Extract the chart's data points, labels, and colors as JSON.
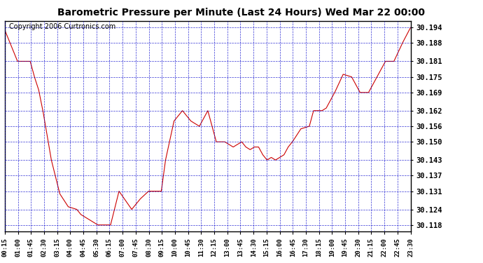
{
  "title": "Barometric Pressure per Minute (Last 24 Hours) Wed Mar 22 00:00",
  "copyright": "Copyright 2006 Curtronics.com",
  "yticks": [
    30.118,
    30.124,
    30.131,
    30.137,
    30.143,
    30.15,
    30.156,
    30.162,
    30.169,
    30.175,
    30.181,
    30.188,
    30.194
  ],
  "ylim": [
    30.1155,
    30.1965
  ],
  "xtick_labels": [
    "00:15",
    "01:00",
    "01:45",
    "02:30",
    "03:15",
    "04:00",
    "04:45",
    "05:30",
    "06:15",
    "07:00",
    "07:45",
    "08:30",
    "09:15",
    "10:00",
    "10:45",
    "11:30",
    "12:15",
    "13:00",
    "13:45",
    "14:30",
    "15:15",
    "16:00",
    "16:45",
    "17:30",
    "18:15",
    "19:00",
    "19:45",
    "20:30",
    "21:15",
    "22:00",
    "22:45",
    "23:30"
  ],
  "line_color": "#cc0000",
  "grid_color": "#0000cc",
  "background_color": "#ffffff",
  "title_fontsize": 10,
  "copyright_fontsize": 7,
  "cp_x": [
    0,
    45,
    90,
    105,
    120,
    135,
    165,
    195,
    225,
    255,
    270,
    285,
    300,
    315,
    330,
    345,
    360,
    375,
    405,
    450,
    480,
    510,
    525,
    555,
    570,
    600,
    630,
    660,
    690,
    720,
    750,
    780,
    810,
    840,
    855,
    870,
    885,
    900,
    915,
    930,
    945,
    960,
    975,
    990,
    1005,
    1020,
    1050,
    1080,
    1095,
    1110,
    1125,
    1140,
    1170,
    1200,
    1230,
    1260,
    1290,
    1320,
    1350,
    1380,
    1410,
    1439
  ],
  "cp_y": [
    30.193,
    30.181,
    30.181,
    30.175,
    30.17,
    30.162,
    30.143,
    30.13,
    30.125,
    30.124,
    30.122,
    30.121,
    30.12,
    30.119,
    30.118,
    30.118,
    30.118,
    30.118,
    30.131,
    30.124,
    30.128,
    30.131,
    30.131,
    30.131,
    30.143,
    30.158,
    30.162,
    30.158,
    30.156,
    30.162,
    30.15,
    30.15,
    30.148,
    30.15,
    30.148,
    30.147,
    30.148,
    30.148,
    30.145,
    30.143,
    30.144,
    30.143,
    30.144,
    30.145,
    30.148,
    30.15,
    30.155,
    30.156,
    30.162,
    30.162,
    30.162,
    30.163,
    30.169,
    30.176,
    30.175,
    30.169,
    30.169,
    30.175,
    30.181,
    30.181,
    30.188,
    30.194
  ]
}
